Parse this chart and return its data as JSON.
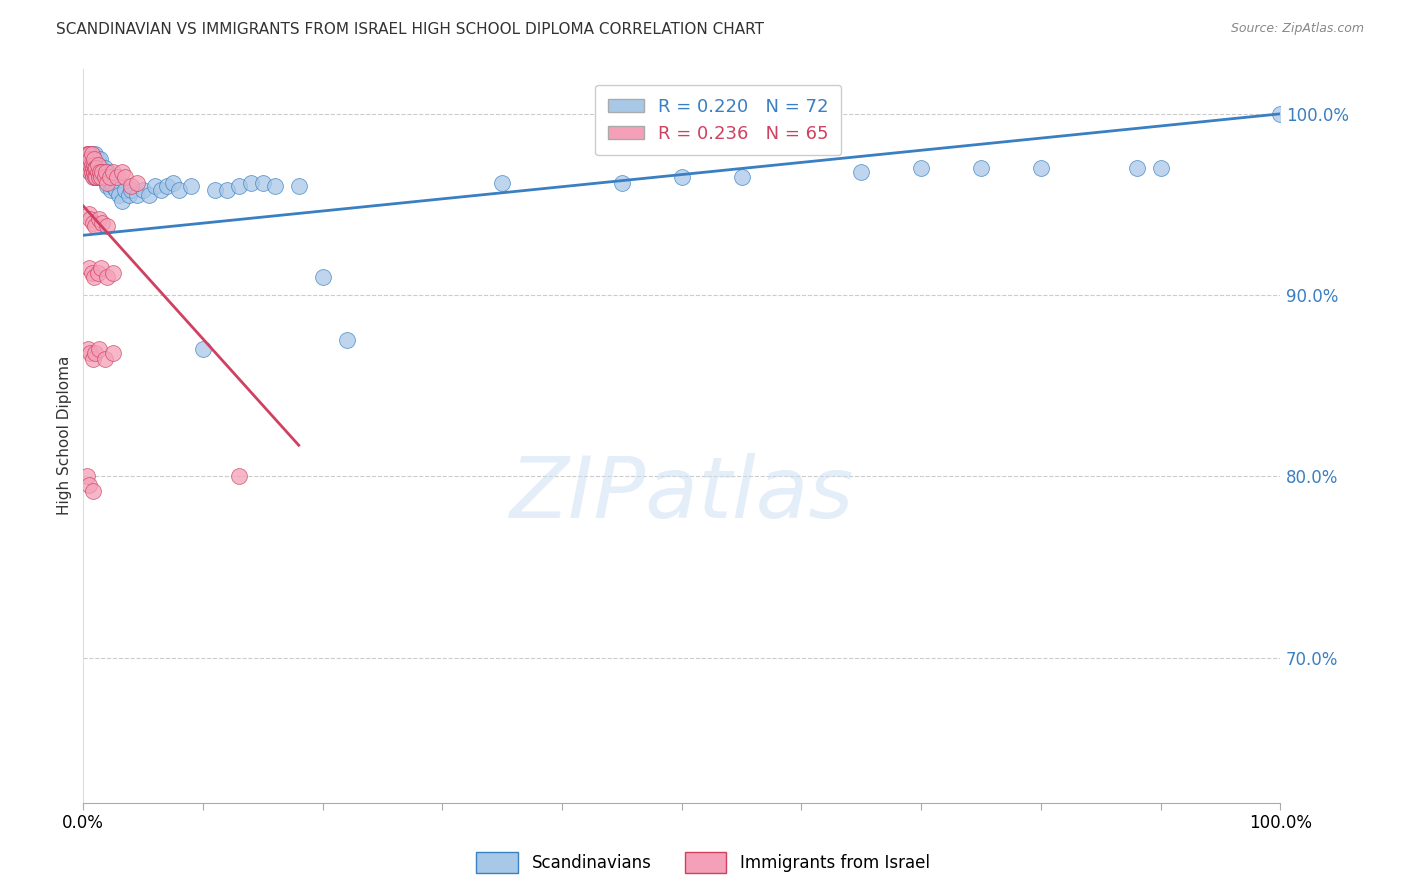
{
  "title": "SCANDINAVIAN VS IMMIGRANTS FROM ISRAEL HIGH SCHOOL DIPLOMA CORRELATION CHART",
  "source": "Source: ZipAtlas.com",
  "ylabel": "High School Diploma",
  "ylabel_right_ticks": [
    "100.0%",
    "90.0%",
    "80.0%",
    "70.0%"
  ],
  "ylabel_right_vals": [
    1.0,
    0.9,
    0.8,
    0.7
  ],
  "legend_label1": "Scandinavians",
  "legend_label2": "Immigrants from Israel",
  "color_blue": "#a8c8e8",
  "color_pink": "#f4a0b8",
  "trend_blue": "#3a7fc1",
  "trend_pink": "#d04060",
  "xlim": [
    0.0,
    1.0
  ],
  "ylim": [
    0.62,
    1.025
  ],
  "scan_x": [
    0.003,
    0.004,
    0.005,
    0.005,
    0.006,
    0.006,
    0.007,
    0.007,
    0.007,
    0.008,
    0.008,
    0.009,
    0.009,
    0.009,
    0.01,
    0.01,
    0.01,
    0.011,
    0.011,
    0.012,
    0.012,
    0.013,
    0.013,
    0.014,
    0.014,
    0.015,
    0.015,
    0.016,
    0.017,
    0.018,
    0.019,
    0.02,
    0.021,
    0.022,
    0.023,
    0.025,
    0.027,
    0.03,
    0.032,
    0.035,
    0.038,
    0.04,
    0.045,
    0.05,
    0.055,
    0.06,
    0.065,
    0.07,
    0.075,
    0.08,
    0.09,
    0.1,
    0.11,
    0.12,
    0.13,
    0.14,
    0.15,
    0.16,
    0.18,
    0.2,
    0.22,
    0.35,
    0.45,
    0.5,
    0.55,
    0.65,
    0.7,
    0.75,
    0.8,
    0.88,
    0.9,
    1.0
  ],
  "scan_y": [
    0.975,
    0.975,
    0.972,
    0.978,
    0.968,
    0.972,
    0.97,
    0.975,
    0.978,
    0.968,
    0.972,
    0.965,
    0.97,
    0.975,
    0.968,
    0.972,
    0.978,
    0.965,
    0.97,
    0.968,
    0.975,
    0.965,
    0.972,
    0.968,
    0.975,
    0.965,
    0.97,
    0.968,
    0.965,
    0.97,
    0.965,
    0.96,
    0.968,
    0.962,
    0.958,
    0.96,
    0.958,
    0.955,
    0.952,
    0.958,
    0.955,
    0.958,
    0.955,
    0.958,
    0.955,
    0.96,
    0.958,
    0.96,
    0.962,
    0.958,
    0.96,
    0.87,
    0.958,
    0.958,
    0.96,
    0.962,
    0.962,
    0.96,
    0.96,
    0.91,
    0.875,
    0.962,
    0.962,
    0.965,
    0.965,
    0.968,
    0.97,
    0.97,
    0.97,
    0.97,
    0.97,
    1.0
  ],
  "isr_x": [
    0.002,
    0.003,
    0.003,
    0.004,
    0.004,
    0.004,
    0.005,
    0.005,
    0.005,
    0.006,
    0.006,
    0.006,
    0.007,
    0.007,
    0.007,
    0.008,
    0.008,
    0.009,
    0.009,
    0.009,
    0.01,
    0.01,
    0.011,
    0.011,
    0.012,
    0.012,
    0.013,
    0.014,
    0.015,
    0.016,
    0.018,
    0.019,
    0.02,
    0.022,
    0.025,
    0.028,
    0.032,
    0.035,
    0.04,
    0.045,
    0.005,
    0.006,
    0.008,
    0.01,
    0.013,
    0.016,
    0.02,
    0.005,
    0.007,
    0.009,
    0.012,
    0.015,
    0.02,
    0.025,
    0.004,
    0.006,
    0.008,
    0.01,
    0.013,
    0.018,
    0.025,
    0.003,
    0.005,
    0.008,
    0.13
  ],
  "isr_y": [
    0.975,
    0.975,
    0.978,
    0.972,
    0.975,
    0.978,
    0.97,
    0.975,
    0.978,
    0.968,
    0.972,
    0.975,
    0.968,
    0.972,
    0.978,
    0.965,
    0.97,
    0.968,
    0.972,
    0.975,
    0.965,
    0.97,
    0.965,
    0.97,
    0.968,
    0.972,
    0.965,
    0.968,
    0.965,
    0.968,
    0.965,
    0.968,
    0.962,
    0.965,
    0.968,
    0.965,
    0.968,
    0.965,
    0.96,
    0.962,
    0.945,
    0.942,
    0.94,
    0.938,
    0.942,
    0.94,
    0.938,
    0.915,
    0.912,
    0.91,
    0.912,
    0.915,
    0.91,
    0.912,
    0.87,
    0.868,
    0.865,
    0.868,
    0.87,
    0.865,
    0.868,
    0.8,
    0.795,
    0.792,
    0.8
  ]
}
